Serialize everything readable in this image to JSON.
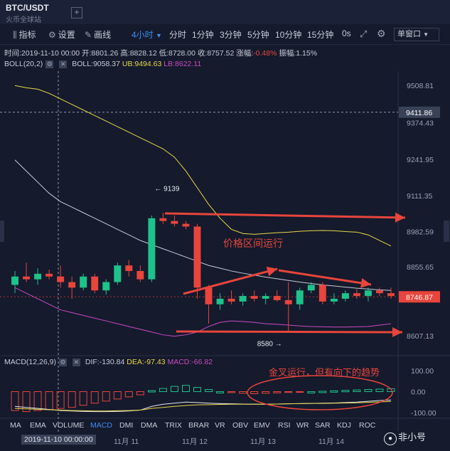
{
  "tabs": {
    "pair": "BTC/USDT",
    "exchange": "火币全球站",
    "add": "+"
  },
  "toolbar": {
    "indicator_label": "指标",
    "settings_label": "设置",
    "draw_label": "画线",
    "period_selected": "4小时",
    "periods": [
      "分时",
      "1分钟",
      "3分钟",
      "5分钟",
      "10分钟",
      "15分钟",
      "0s"
    ],
    "window_label": "单窗口"
  },
  "ohlc": {
    "time_label": "时间:",
    "time": "2019-11-10 00:00",
    "open_label": "开:",
    "open": "8801.26",
    "high_label": "高:",
    "high": "8828.12",
    "low_label": "低:",
    "low": "8728.00",
    "close_label": "收:",
    "close": "8757.52",
    "change_label": "涨幅:",
    "change": "-0.48%",
    "amp_label": "振幅:",
    "amp": "1.15%"
  },
  "boll": {
    "name": "BOLL(20,2)",
    "mid": "BOLL:9058.37",
    "ub": "UB:9494.63",
    "lb": "LB:8622.11"
  },
  "macd": {
    "name": "MACD(12,26,9)",
    "dif": "DIF:-130.84",
    "dea": "DEA:-97.43",
    "macd": "MACD:-66.82"
  },
  "price_axis": [
    "9508.81",
    "9374.43",
    "9241.95",
    "9111.35",
    "8982.59",
    "8855.65",
    "8607.13"
  ],
  "price_labels": {
    "cursor": "9411.86",
    "last": "8746.87"
  },
  "macd_axis": [
    "100.00",
    "0.00",
    "-100.00"
  ],
  "annotations": {
    "range": "价格区间运行",
    "golden_cross": "金叉运行，但有向下的趋势",
    "high_mark": "← 9139",
    "low_mark": "8580 →"
  },
  "indicators": [
    "MA",
    "EMA",
    "VOLUME",
    "MACD",
    "DMI",
    "DMA",
    "TRIX",
    "BRAR",
    "VR",
    "OBV",
    "EMV",
    "RSI",
    "WR",
    "SAR",
    "KDJ",
    "ROC"
  ],
  "time_axis": {
    "cursor": "2019-11-10 00:00:00",
    "labels": [
      "11月 11",
      "11月 12",
      "11月 13",
      "11月 14"
    ]
  },
  "watermark": "非小号",
  "colors": {
    "bg": "#151a2c",
    "up": "#1ec28b",
    "down": "#e8453c",
    "accent": "#3d8ef5",
    "annotation": "#e8453c"
  },
  "chart_data": {
    "type": "candlestick",
    "candles": [
      {
        "o": 8790,
        "h": 8840,
        "l": 8760,
        "c": 8820
      },
      {
        "o": 8820,
        "h": 8870,
        "l": 8800,
        "c": 8810
      },
      {
        "o": 8810,
        "h": 8850,
        "l": 8790,
        "c": 8830
      },
      {
        "o": 8830,
        "h": 8845,
        "l": 8810,
        "c": 8820
      },
      {
        "o": 8820,
        "h": 8860,
        "l": 8780,
        "c": 8800
      },
      {
        "o": 8800,
        "h": 8820,
        "l": 8740,
        "c": 8780
      },
      {
        "o": 8780,
        "h": 8830,
        "l": 8770,
        "c": 8820
      },
      {
        "o": 8820,
        "h": 8830,
        "l": 8760,
        "c": 8770
      },
      {
        "o": 8770,
        "h": 8810,
        "l": 8755,
        "c": 8800
      },
      {
        "o": 8800,
        "h": 8870,
        "l": 8790,
        "c": 8860
      },
      {
        "o": 8860,
        "h": 8880,
        "l": 8820,
        "c": 8840
      },
      {
        "o": 8840,
        "h": 8860,
        "l": 8800,
        "c": 8810
      },
      {
        "o": 8810,
        "h": 9040,
        "l": 8800,
        "c": 9030
      },
      {
        "o": 9030,
        "h": 9050,
        "l": 9010,
        "c": 9020
      },
      {
        "o": 9020,
        "h": 9040,
        "l": 9000,
        "c": 9010
      },
      {
        "o": 9010,
        "h": 9020,
        "l": 8990,
        "c": 9000
      },
      {
        "o": 9000,
        "h": 9010,
        "l": 8740,
        "c": 8780
      },
      {
        "o": 8780,
        "h": 8790,
        "l": 8650,
        "c": 8720
      },
      {
        "o": 8720,
        "h": 8760,
        "l": 8700,
        "c": 8740
      },
      {
        "o": 8740,
        "h": 8770,
        "l": 8720,
        "c": 8730
      },
      {
        "o": 8730,
        "h": 8760,
        "l": 8715,
        "c": 8750
      },
      {
        "o": 8750,
        "h": 8770,
        "l": 8730,
        "c": 8740
      },
      {
        "o": 8740,
        "h": 8760,
        "l": 8720,
        "c": 8750
      },
      {
        "o": 8750,
        "h": 8770,
        "l": 8730,
        "c": 8735
      },
      {
        "o": 8735,
        "h": 8800,
        "l": 8620,
        "c": 8720
      },
      {
        "o": 8720,
        "h": 8780,
        "l": 8700,
        "c": 8770
      },
      {
        "o": 8770,
        "h": 8800,
        "l": 8760,
        "c": 8790
      },
      {
        "o": 8790,
        "h": 8800,
        "l": 8720,
        "c": 8730
      },
      {
        "o": 8730,
        "h": 8760,
        "l": 8720,
        "c": 8740
      },
      {
        "o": 8740,
        "h": 8770,
        "l": 8730,
        "c": 8760
      },
      {
        "o": 8760,
        "h": 8775,
        "l": 8740,
        "c": 8750
      },
      {
        "o": 8750,
        "h": 8780,
        "l": 8730,
        "c": 8770
      },
      {
        "o": 8770,
        "h": 8780,
        "l": 8750,
        "c": 8760
      },
      {
        "o": 8760,
        "h": 8780,
        "l": 8740,
        "c": 8750
      }
    ],
    "boll_mid": [
      9240,
      9200,
      9160,
      9120,
      9090,
      9070,
      9050,
      9030,
      9010,
      8990,
      8970,
      8950,
      8935,
      8920,
      8905,
      8890,
      8875,
      8860,
      8850,
      8840,
      8832,
      8825,
      8818,
      8812,
      8806,
      8800,
      8795,
      8790,
      8786,
      8782,
      8778,
      8775,
      8772,
      8770
    ],
    "boll_upper": [
      9508,
      9500,
      9495,
      9480,
      9460,
      9440,
      9420,
      9400,
      9380,
      9360,
      9340,
      9320,
      9300,
      9280,
      9250,
      9200,
      9140,
      9080,
      9030,
      8990,
      8975,
      8972,
      8975,
      8978,
      8980,
      8983,
      8985,
      8986,
      8985,
      8982,
      8980,
      8970,
      8950,
      8930
    ],
    "boll_lower": [
      8780,
      8760,
      8740,
      8720,
      8700,
      8690,
      8680,
      8670,
      8660,
      8650,
      8640,
      8630,
      8620,
      8610,
      8605,
      8610,
      8620,
      8640,
      8655,
      8660,
      8658,
      8655,
      8650,
      8648,
      8645,
      8642,
      8640,
      8639,
      8638,
      8638,
      8639,
      8640,
      8645,
      8650
    ],
    "macd_hist": [
      -90,
      -95,
      -90,
      -85,
      -80,
      -75,
      -65,
      -55,
      -45,
      -35,
      -25,
      -15,
      5,
      15,
      25,
      30,
      20,
      10,
      0,
      -5,
      -8,
      -10,
      -8,
      -6,
      -4,
      -2,
      0,
      2,
      4,
      6,
      8,
      10,
      12,
      14
    ],
    "dif": [
      -70,
      -75,
      -80,
      -85,
      -90,
      -92,
      -94,
      -95,
      -95,
      -94,
      -92,
      -88,
      -70,
      -60,
      -55,
      -50,
      -52,
      -55,
      -57,
      -58,
      -59,
      -60,
      -60,
      -59,
      -58,
      -57,
      -56,
      -55,
      -54,
      -52,
      -50,
      -46,
      -42,
      -40
    ],
    "dea": [
      -80,
      -82,
      -84,
      -86,
      -88,
      -90,
      -91,
      -92,
      -92,
      -91,
      -90,
      -88,
      -80,
      -75,
      -70,
      -66,
      -63,
      -62,
      -61,
      -60,
      -60,
      -60,
      -60,
      -59,
      -58,
      -57,
      -56,
      -56,
      -55,
      -54,
      -53,
      -51,
      -49,
      -47
    ],
    "price_range": [
      8540,
      9560
    ],
    "macd_range": [
      -120,
      110
    ]
  }
}
